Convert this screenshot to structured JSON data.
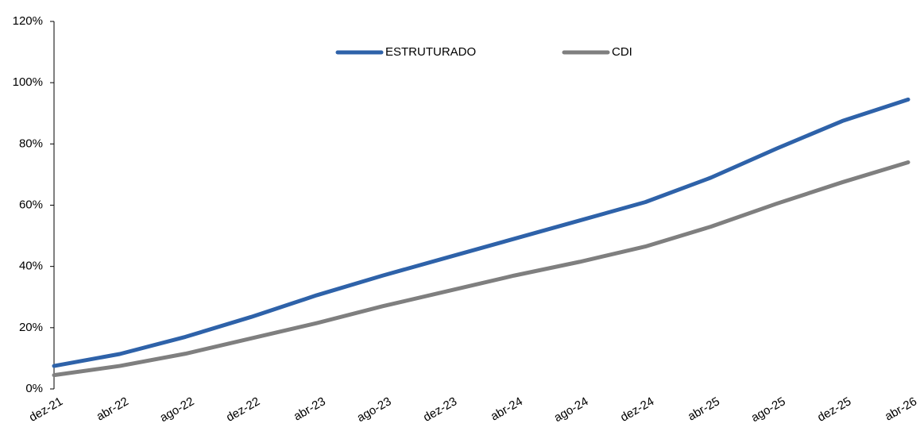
{
  "chart_data": {
    "type": "line",
    "categories": [
      "dez-21",
      "abr-22",
      "ago-22",
      "dez-22",
      "abr-23",
      "ago-23",
      "dez-23",
      "abr-24",
      "ago-24",
      "dez-24",
      "abr-25",
      "ago-25",
      "dez-25",
      "abr-26"
    ],
    "series": [
      {
        "name": "ESTRUTURADO",
        "color": "#2e62a9",
        "values": [
          7.5,
          11.4,
          17,
          23.5,
          30.6,
          37,
          43,
          49,
          55,
          61,
          69,
          78.5,
          87.5,
          94.5
        ]
      },
      {
        "name": "CDI",
        "color": "#7f7f7f",
        "values": [
          4.5,
          7.5,
          11.5,
          16.5,
          21.5,
          27,
          32,
          37,
          41.5,
          46.5,
          53,
          60.5,
          67.5,
          74
        ]
      }
    ],
    "ylim": [
      0,
      120
    ],
    "yticks": [
      {
        "value": 0,
        "label": "0%"
      },
      {
        "value": 20,
        "label": "20%"
      },
      {
        "value": 40,
        "label": "40%"
      },
      {
        "value": 60,
        "label": "60%"
      },
      {
        "value": 80,
        "label": "80%"
      },
      {
        "value": 100,
        "label": "100%"
      },
      {
        "value": 120,
        "label": "120%"
      }
    ],
    "grid": false,
    "legend": "top"
  }
}
